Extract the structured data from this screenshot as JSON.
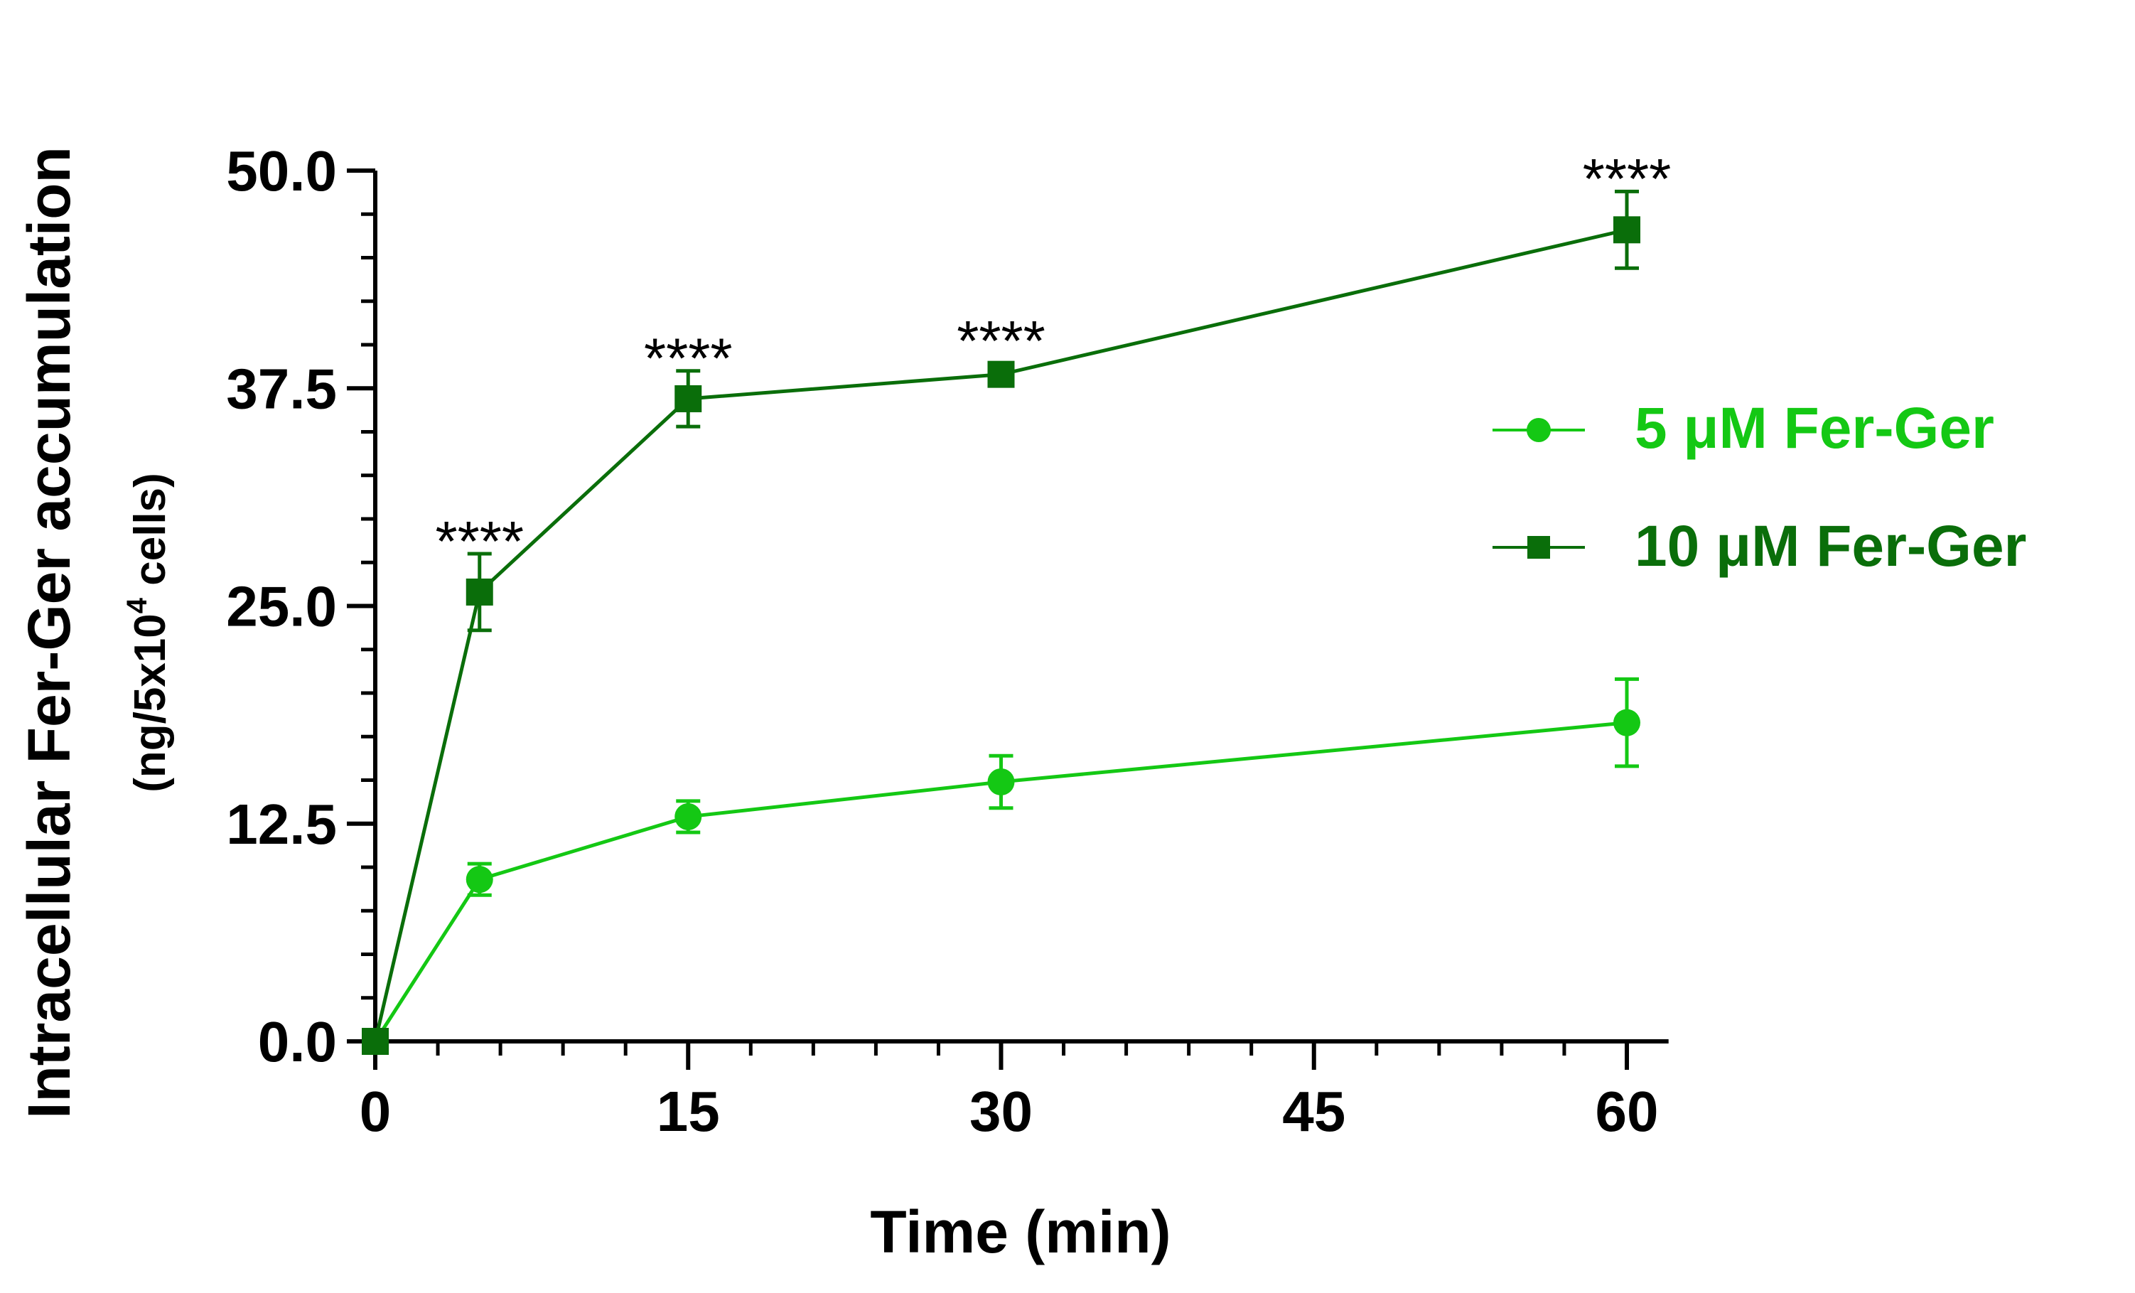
{
  "chart_data": {
    "type": "line",
    "title": "",
    "xlabel": "Time (min)",
    "ylabel": {
      "line1": "Intracellular Fer-Ger accumulation",
      "line2_prefix": "(ng/5x10",
      "line2_superscript": "4",
      "line2_suffix": " cells)"
    },
    "xlim": [
      0,
      62
    ],
    "ylim": [
      0,
      50
    ],
    "x_ticks": [
      0,
      15,
      30,
      45,
      60
    ],
    "x_tick_labels": [
      "0",
      "15",
      "30",
      "45",
      "60"
    ],
    "y_ticks": [
      0,
      12.5,
      25,
      37.5,
      50
    ],
    "y_tick_labels": [
      "0.0",
      "12.5",
      "25.0",
      "37.5",
      "50.0"
    ],
    "x_minor_step": 3,
    "y_minor_step": 2.5,
    "grid": false,
    "legend_position": "center-right",
    "series": [
      {
        "name": "5 μM Fer-Ger",
        "color": "#14c814",
        "marker": "circle",
        "x": [
          0,
          5,
          15,
          30,
          60
        ],
        "values": [
          0,
          9.3,
          12.9,
          14.9,
          18.3
        ],
        "errors": [
          0,
          0.9,
          0.9,
          1.5,
          2.5
        ]
      },
      {
        "name": "10 μM Fer-Ger",
        "color": "#0a6e0a",
        "marker": "square",
        "x": [
          0,
          5,
          15,
          30,
          60
        ],
        "values": [
          0,
          25.8,
          36.9,
          38.3,
          46.6
        ],
        "errors": [
          0,
          2.2,
          1.6,
          0,
          2.2
        ]
      }
    ],
    "annotations": [
      {
        "x": 5,
        "y": 28.5,
        "text": "****"
      },
      {
        "x": 15,
        "y": 39.0,
        "text": "****"
      },
      {
        "x": 30,
        "y": 40.0,
        "text": "****"
      },
      {
        "x": 60,
        "y": 49.3,
        "text": "****"
      }
    ]
  }
}
